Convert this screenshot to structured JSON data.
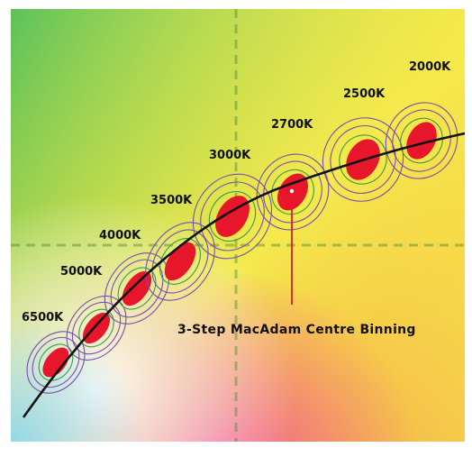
{
  "diagram": {
    "callout_text": "3-Step MacAdam Centre Binning",
    "bins": [
      {
        "label": "6500K"
      },
      {
        "label": "5000K"
      },
      {
        "label": "4000K"
      },
      {
        "label": "3500K"
      },
      {
        "label": "3000K"
      },
      {
        "label": "2700K"
      },
      {
        "label": "2500K"
      },
      {
        "label": "2000K"
      }
    ],
    "colors": {
      "curve": "#111111",
      "center_ellipse": "#e8162a",
      "ring_inner": "#3a9a4a",
      "ring_outer": "#7a4bb5",
      "callout_line": "#e8162a",
      "guide_line": "#4a8a3a"
    }
  }
}
